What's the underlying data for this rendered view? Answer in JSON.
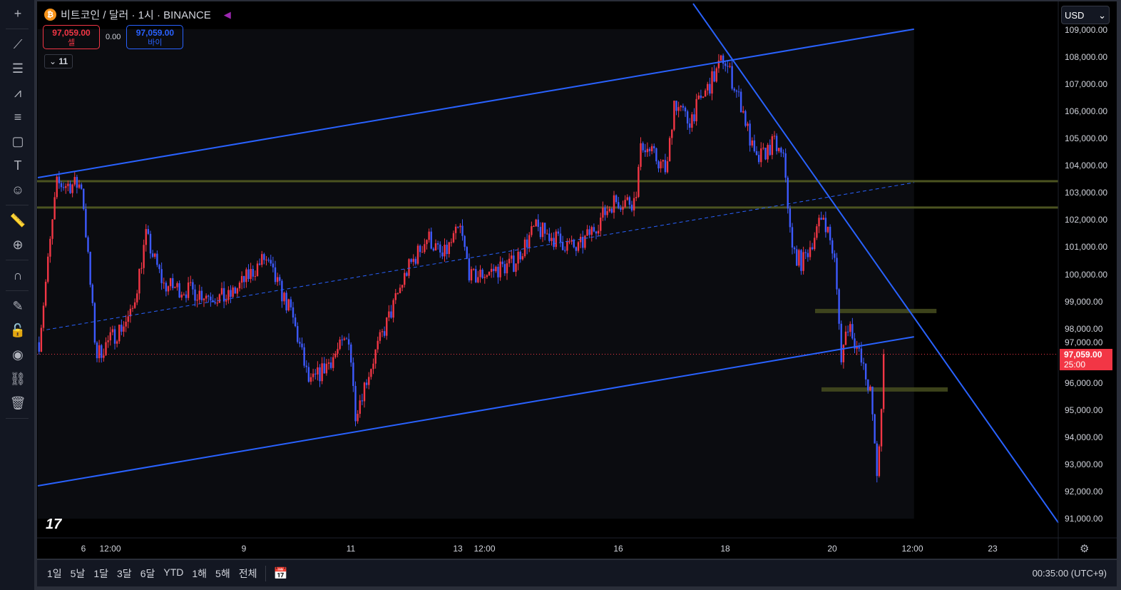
{
  "toolbar": {
    "tools": [
      {
        "name": "crosshair-icon",
        "glyph": "+"
      },
      {
        "name": "trend-line-icon",
        "glyph": "⟋"
      },
      {
        "name": "fib-icon",
        "glyph": "☰"
      },
      {
        "name": "pattern-icon",
        "glyph": "⩘"
      },
      {
        "name": "forecast-icon",
        "glyph": "≡"
      },
      {
        "name": "shape-icon",
        "glyph": "▢"
      },
      {
        "name": "text-icon",
        "glyph": "T"
      },
      {
        "name": "emoji-icon",
        "glyph": "☺"
      },
      {
        "name": "ruler-icon",
        "glyph": "📏"
      },
      {
        "name": "zoom-in-icon",
        "glyph": "⊕"
      },
      {
        "name": "magnet-icon",
        "glyph": "∩"
      },
      {
        "name": "draw-lock-icon",
        "glyph": "✎"
      },
      {
        "name": "lock-icon",
        "glyph": "🔓"
      },
      {
        "name": "eye-icon",
        "glyph": "◉"
      },
      {
        "name": "link-icon",
        "glyph": "⛓"
      },
      {
        "name": "trash-icon",
        "glyph": "🗑"
      }
    ]
  },
  "header": {
    "title": "비트코인 / 달러 · 1시 · BINANCE",
    "sell_price": "97,059.00",
    "sell_label": "셀",
    "spread": "0.00",
    "buy_price": "97,059.00",
    "buy_label": "바이",
    "indicators_count": "11",
    "currency": "USD"
  },
  "price_axis": [
    "109,000.00",
    "108,000.00",
    "107,000.00",
    "106,000.00",
    "105,000.00",
    "104,000.00",
    "103,000.00",
    "102,000.00",
    "101,000.00",
    "100,000.00",
    "99,000.00",
    "98,000.00",
    "97,000.00",
    "96,000.00",
    "95,000.00",
    "94,000.00",
    "93,000.00",
    "92,000.00",
    "91,000.00"
  ],
  "last_price": {
    "value": "97,059.00",
    "countdown": "25:00"
  },
  "time_axis": [
    {
      "label": "6",
      "day": 6
    },
    {
      "label": "12:00",
      "day": 6.5
    },
    {
      "label": "9",
      "day": 9
    },
    {
      "label": "11",
      "day": 11
    },
    {
      "label": "13",
      "day": 13
    },
    {
      "label": "12:00",
      "day": 13.5
    },
    {
      "label": "16",
      "day": 16
    },
    {
      "label": "18",
      "day": 18
    },
    {
      "label": "20",
      "day": 20
    },
    {
      "label": "12:00",
      "day": 21.5
    },
    {
      "label": "23",
      "day": 23
    }
  ],
  "chart_data": {
    "type": "candlestick",
    "interval": "1h",
    "ylim": [
      90700,
      109300
    ],
    "xlim_days": [
      5.147,
      24.23
    ],
    "up_color": "#f23645",
    "down_color": "#3d5afe",
    "price_path": [
      [
        5.17,
        97500
      ],
      [
        5.5,
        103300
      ],
      [
        5.97,
        103300
      ],
      [
        6.24,
        97000
      ],
      [
        6.9,
        98500
      ],
      [
        7.17,
        101400
      ],
      [
        7.5,
        99600
      ],
      [
        8.7,
        99100
      ],
      [
        9.39,
        100600
      ],
      [
        9.9,
        98500
      ],
      [
        10.23,
        95900
      ],
      [
        10.97,
        97700
      ],
      [
        11.08,
        94900
      ],
      [
        11.44,
        97000
      ],
      [
        12.04,
        100100
      ],
      [
        12.44,
        101400
      ],
      [
        12.71,
        100600
      ],
      [
        13.04,
        101700
      ],
      [
        13.24,
        99850
      ],
      [
        14.04,
        100400
      ],
      [
        14.44,
        101700
      ],
      [
        15.24,
        100900
      ],
      [
        15.91,
        102700
      ],
      [
        16.31,
        102700
      ],
      [
        16.44,
        104850
      ],
      [
        16.91,
        103800
      ],
      [
        17.04,
        106400
      ],
      [
        17.31,
        105600
      ],
      [
        17.77,
        107200
      ],
      [
        17.97,
        108000
      ],
      [
        18.31,
        106200
      ],
      [
        18.57,
        104100
      ],
      [
        18.91,
        104850
      ],
      [
        19.11,
        104100
      ],
      [
        19.24,
        100900
      ],
      [
        19.44,
        100400
      ],
      [
        19.84,
        102200
      ],
      [
        20.04,
        100600
      ],
      [
        20.17,
        97000
      ],
      [
        20.31,
        98300
      ],
      [
        20.71,
        95650
      ],
      [
        20.84,
        92600
      ],
      [
        21.0,
        97059
      ]
    ],
    "drawings": [
      {
        "kind": "line",
        "color": "#2962ff",
        "points": [
          [
            5.147,
            103560
          ],
          [
            21.53,
            109030
          ]
        ]
      },
      {
        "kind": "line",
        "color": "#2962ff",
        "points": [
          [
            5.147,
            92210
          ],
          [
            21.53,
            97700
          ]
        ]
      },
      {
        "kind": "dashed",
        "color": "#2962ff",
        "points": [
          [
            5.31,
            97960
          ],
          [
            21.53,
            103380
          ]
        ]
      },
      {
        "kind": "line",
        "color": "#2962ff",
        "points": [
          [
            17.4,
            109970
          ],
          [
            24.23,
            90850
          ]
        ]
      },
      {
        "kind": "hline",
        "color": "#4b5320",
        "price": 103430
      },
      {
        "kind": "hline",
        "color": "#4b5320",
        "price": 102460
      },
      {
        "kind": "box",
        "color": "#4b5320",
        "points": [
          [
            19.68,
            98650
          ],
          [
            21.95,
            98650
          ]
        ]
      },
      {
        "kind": "box",
        "color": "#4b5320",
        "points": [
          [
            19.8,
            95760
          ],
          [
            22.16,
            95760
          ]
        ]
      }
    ]
  },
  "bottom_bar": {
    "ranges": [
      "1일",
      "5날",
      "1달",
      "3달",
      "6달",
      "YTD",
      "1해",
      "5해",
      "전체"
    ],
    "clock": "00:35:00 (UTC+9)"
  }
}
